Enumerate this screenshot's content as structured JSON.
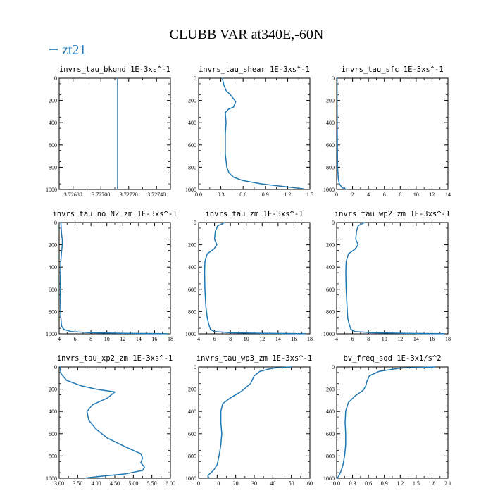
{
  "page_title": "CLUBB VAR at340E,-60N",
  "legend": {
    "label": "zt21",
    "color": "#1f77b4"
  },
  "series_color": "#1f77b4",
  "chart_data": [
    {
      "type": "line",
      "title": "invrs_tau_bkgnd   1E-3xs^-1",
      "xlim": [
        3.7267,
        3.7275
      ],
      "ylim": [
        1000,
        0
      ],
      "xticks": [
        3.7268,
        3.727,
        3.7272,
        3.7274
      ],
      "xtick_labels": [
        "3.72680",
        "3.72700",
        "3.72720",
        "3.72740"
      ],
      "yticks": [
        0,
        200,
        400,
        600,
        800,
        1000
      ],
      "series": [
        {
          "x": [
            3.72712,
            3.72712
          ],
          "y": [
            0,
            1000
          ]
        }
      ]
    },
    {
      "type": "line",
      "title": "invrs_tau_shear   1E-3xs^-1",
      "xlim": [
        0,
        1.5
      ],
      "ylim": [
        1000,
        0
      ],
      "xticks": [
        0,
        0.3,
        0.6,
        0.9,
        1.2,
        1.5
      ],
      "xtick_labels": [
        "0.0",
        "0.3",
        "0.6",
        "0.9",
        "1.2",
        "1.5"
      ],
      "yticks": [
        0,
        200,
        400,
        600,
        800,
        1000
      ],
      "series": [
        {
          "x": [
            0.32,
            0.34,
            0.37,
            0.43,
            0.5,
            0.47,
            0.4,
            0.36,
            0.37,
            0.36,
            0.36,
            0.36,
            0.37,
            0.38,
            0.41,
            0.47,
            0.6,
            0.85,
            1.1,
            1.3,
            1.42
          ],
          "y": [
            0,
            60,
            110,
            150,
            210,
            260,
            280,
            310,
            400,
            500,
            600,
            680,
            740,
            800,
            850,
            890,
            920,
            950,
            970,
            985,
            995
          ]
        }
      ]
    },
    {
      "type": "line",
      "title": "invrs_tau_sfc   1E-3xs^-1",
      "xlim": [
        0,
        14
      ],
      "ylim": [
        1000,
        0
      ],
      "xticks": [
        0,
        2,
        4,
        6,
        8,
        10,
        12,
        14
      ],
      "xtick_labels": [
        "0",
        "2",
        "4",
        "6",
        "8",
        "10",
        "12",
        "14"
      ],
      "yticks": [
        0,
        200,
        400,
        600,
        800,
        1000
      ],
      "series": [
        {
          "x": [
            0.05,
            0.06,
            0.08,
            0.12,
            0.2,
            0.35,
            0.7,
            1.2
          ],
          "y": [
            0,
            200,
            500,
            800,
            900,
            950,
            985,
            998
          ]
        }
      ]
    },
    {
      "type": "line",
      "title": "invrs_tau_no_N2_zm   1E-3xs^-1",
      "xlim": [
        4,
        18
      ],
      "ylim": [
        1000,
        0
      ],
      "xticks": [
        4,
        6,
        8,
        10,
        12,
        14,
        16,
        18
      ],
      "xtick_labels": [
        "4",
        "6",
        "8",
        "10",
        "12",
        "14",
        "16",
        "18"
      ],
      "yticks": [
        0,
        200,
        400,
        600,
        800,
        1000
      ],
      "series": [
        {
          "x": [
            4.2,
            4.3,
            4.4,
            4.4,
            4.3,
            4.2,
            4.15,
            4.15,
            4.2,
            4.3,
            4.6,
            5.5,
            8.0,
            12.0,
            17.5
          ],
          "y": [
            0,
            100,
            160,
            200,
            260,
            350,
            500,
            700,
            850,
            930,
            960,
            980,
            990,
            995,
            998
          ]
        }
      ]
    },
    {
      "type": "line",
      "title": "invrs_tau_zm   1E-3xs^-1",
      "xlim": [
        4,
        18
      ],
      "ylim": [
        1000,
        0
      ],
      "xticks": [
        4,
        6,
        8,
        10,
        12,
        14,
        16,
        18
      ],
      "xtick_labels": [
        "4",
        "6",
        "8",
        "10",
        "12",
        "14",
        "16",
        "18"
      ],
      "yticks": [
        0,
        200,
        400,
        600,
        800,
        1000
      ],
      "series": [
        {
          "x": [
            7.3,
            6.4,
            6.1,
            6.0,
            6.3,
            5.9,
            5.1,
            4.8,
            4.75,
            4.8,
            4.9,
            5.1,
            5.3,
            5.5,
            6.0,
            8.0,
            12.0,
            17.5
          ],
          "y": [
            0,
            30,
            80,
            150,
            200,
            240,
            280,
            350,
            450,
            600,
            750,
            860,
            920,
            960,
            980,
            990,
            995,
            998
          ]
        }
      ]
    },
    {
      "type": "line",
      "title": "invrs_tau_wp2_zm   1E-3xs^-1",
      "xlim": [
        4,
        18
      ],
      "ylim": [
        1000,
        0
      ],
      "xticks": [
        4,
        6,
        8,
        10,
        12,
        14,
        16,
        18
      ],
      "xtick_labels": [
        "4",
        "6",
        "8",
        "10",
        "12",
        "14",
        "16",
        "18"
      ],
      "yticks": [
        0,
        200,
        400,
        600,
        800,
        1000
      ],
      "series": [
        {
          "x": [
            7.5,
            6.7,
            6.5,
            6.4,
            6.7,
            6.3,
            5.5,
            5.2,
            5.15,
            5.2,
            5.3,
            5.4,
            5.6,
            5.8,
            6.3,
            8.5,
            12.5,
            17.5
          ],
          "y": [
            0,
            30,
            80,
            150,
            200,
            240,
            280,
            350,
            450,
            600,
            750,
            860,
            920,
            960,
            980,
            990,
            995,
            998
          ]
        }
      ]
    },
    {
      "type": "line",
      "title": "invrs_tau_xp2_zm   1E-3xs^-1",
      "xlim": [
        3,
        6
      ],
      "ylim": [
        1000,
        0
      ],
      "xticks": [
        3,
        3.5,
        4,
        4.5,
        5,
        5.5,
        6
      ],
      "xtick_labels": [
        "3.00",
        "3.50",
        "4.00",
        "4.50",
        "5.00",
        "5.50",
        "6.00"
      ],
      "yticks": [
        0,
        200,
        400,
        600,
        800,
        1000
      ],
      "series": [
        {
          "x": [
            3.02,
            3.05,
            3.2,
            3.6,
            4.0,
            4.5,
            4.3,
            3.9,
            3.75,
            3.8,
            4.0,
            4.3,
            4.8,
            5.2,
            5.25,
            5.2,
            5.3,
            5.25,
            4.8,
            4.2,
            3.7
          ],
          "y": [
            0,
            60,
            120,
            170,
            200,
            225,
            280,
            340,
            400,
            480,
            560,
            640,
            720,
            780,
            820,
            860,
            900,
            930,
            960,
            980,
            998
          ]
        }
      ]
    },
    {
      "type": "line",
      "title": "invrs_tau_wp3_zm   1E-3xs^-1",
      "xlim": [
        0,
        60
      ],
      "ylim": [
        1000,
        0
      ],
      "xticks": [
        0,
        10,
        20,
        30,
        40,
        50,
        60
      ],
      "xtick_labels": [
        "0",
        "10",
        "20",
        "30",
        "40",
        "50",
        "60"
      ],
      "yticks": [
        0,
        200,
        400,
        600,
        800,
        1000
      ],
      "series": [
        {
          "x": [
            50,
            40,
            33,
            30,
            28,
            23,
            17,
            13,
            12,
            12,
            12.5,
            12,
            11,
            10,
            8,
            6,
            5,
            5.5
          ],
          "y": [
            0,
            10,
            40,
            80,
            150,
            220,
            280,
            330,
            400,
            500,
            600,
            700,
            800,
            880,
            930,
            960,
            980,
            995
          ]
        }
      ]
    },
    {
      "type": "line",
      "title": "bv_freq_sqd   1E-3x1/s^2",
      "xlim": [
        0,
        2.1
      ],
      "ylim": [
        1000,
        0
      ],
      "xticks": [
        0,
        0.3,
        0.6,
        0.9,
        1.2,
        1.5,
        1.8,
        2.1
      ],
      "xtick_labels": [
        "0.0",
        "0.3",
        "0.6",
        "0.9",
        "1.2",
        "1.5",
        "1.8",
        "2.1"
      ],
      "yticks": [
        0,
        200,
        400,
        600,
        800,
        1000
      ],
      "series": [
        {
          "x": [
            1.85,
            1.2,
            0.8,
            0.62,
            0.57,
            0.55,
            0.5,
            0.35,
            0.22,
            0.17,
            0.16,
            0.17,
            0.17,
            0.15,
            0.12,
            0.08,
            0.04,
            0.01
          ],
          "y": [
            0,
            10,
            40,
            80,
            130,
            170,
            210,
            260,
            320,
            400,
            500,
            600,
            700,
            800,
            880,
            940,
            980,
            998
          ]
        }
      ]
    }
  ]
}
